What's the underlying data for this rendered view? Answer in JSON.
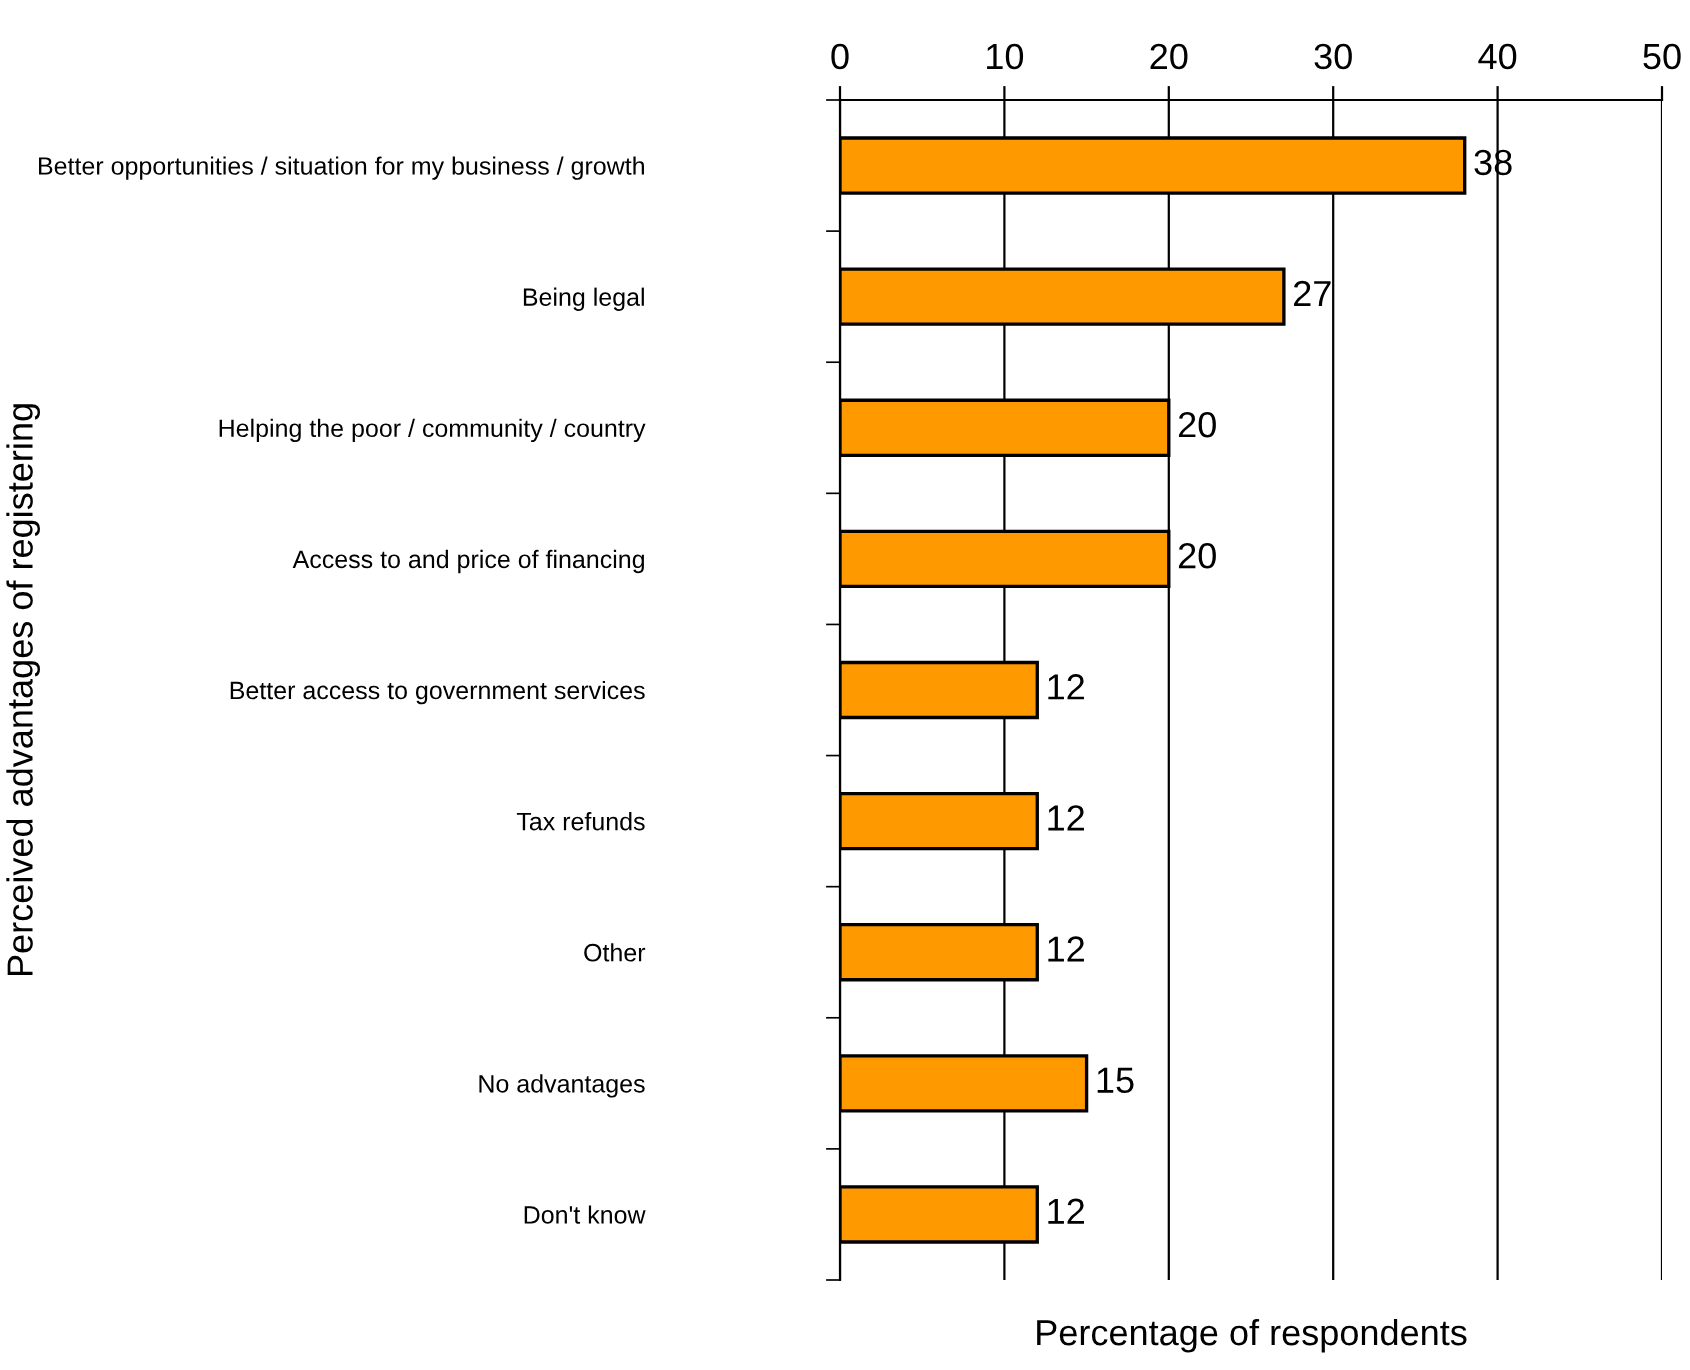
{
  "chart_data": {
    "type": "bar",
    "orientation": "horizontal",
    "ylabel": "Perceived advantages of registering",
    "xlabel": "Percentage of respondents",
    "categories": [
      "Better opportunities / situation for my business / growth",
      "Being legal",
      "Helping the poor / community / country",
      "Access to and price of financing",
      "Better access to government services",
      "Tax refunds",
      "Other",
      "No advantages",
      "Don't know"
    ],
    "values": [
      38,
      27,
      20,
      20,
      12,
      12,
      12,
      15,
      12
    ],
    "color": "#ff9900",
    "xlim": [
      0,
      50
    ],
    "xticks": [
      0,
      10,
      20,
      30,
      40,
      50
    ],
    "grid": "x",
    "data_labels": true
  }
}
